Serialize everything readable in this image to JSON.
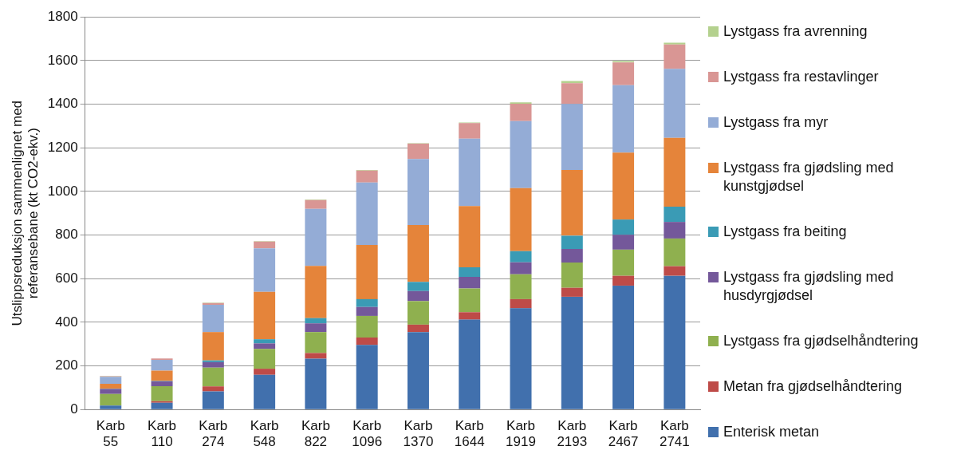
{
  "chart_data": {
    "type": "bar",
    "stacked": true,
    "ylabel": "Utslippsreduksjon sammenlignet med referansebane (kt CO2-ekv.)",
    "categories": [
      "Karb 55",
      "Karb 110",
      "Karb 274",
      "Karb 548",
      "Karb 822",
      "Karb 1096",
      "Karb 1370",
      "Karb 1644",
      "Karb 1919",
      "Karb 2193",
      "Karb 2467",
      "Karb 2741"
    ],
    "ylim": [
      0,
      1800
    ],
    "yticks": [
      0,
      200,
      400,
      600,
      800,
      1000,
      1200,
      1400,
      1600,
      1800
    ],
    "grid": "y",
    "legend": "right",
    "series": [
      {
        "name": "Enterisk metan",
        "color": "#4170ad",
        "values": [
          18,
          31,
          83,
          159,
          233,
          296,
          355,
          412,
          464,
          517,
          568,
          613
        ]
      },
      {
        "name": "Metan fra gjødselhåndtering",
        "color": "#be4b48",
        "values": [
          null,
          7,
          23,
          28,
          26,
          34,
          34,
          34,
          42,
          41,
          45,
          44
        ]
      },
      {
        "name": "Lystgass fra gjødselhåndtering",
        "color": "#8fb04f",
        "values": [
          53,
          69,
          86,
          91,
          96,
          99,
          108,
          109,
          114,
          116,
          120,
          127
        ]
      },
      {
        "name": "Lystgass fra gjødsling med husdyrgjødsel",
        "color": "#74589a",
        "values": [
          23,
          22,
          25,
          25,
          40,
          41,
          46,
          53,
          55,
          62,
          68,
          76
        ]
      },
      {
        "name": "Lystgass fra beiting",
        "color": "#3a9bb5",
        "values": [
          2,
          2,
          8,
          19,
          24,
          36,
          42,
          44,
          51,
          61,
          70,
          70
        ]
      },
      {
        "name": "Lystgass fra gjødsling med kunstgjødsel",
        "color": "#e5843a",
        "values": [
          22,
          47,
          130,
          217,
          239,
          248,
          261,
          281,
          289,
          301,
          307,
          316
        ]
      },
      {
        "name": "Lystgass fra myr",
        "color": "#94acd6",
        "values": [
          32,
          50,
          125,
          200,
          262,
          287,
          303,
          309,
          307,
          303,
          309,
          316
        ]
      },
      {
        "name": "Lystgass fra restavlinger",
        "color": "#d99694",
        "values": [
          3,
          6,
          8,
          31,
          40,
          55,
          70,
          71,
          80,
          95,
          104,
          112
        ]
      },
      {
        "name": "Lystgass fra avrenning",
        "color": "#b4d18e",
        "values": [
          1,
          null,
          2,
          2,
          3,
          2,
          2,
          3,
          6,
          10,
          7,
          8
        ]
      }
    ]
  }
}
